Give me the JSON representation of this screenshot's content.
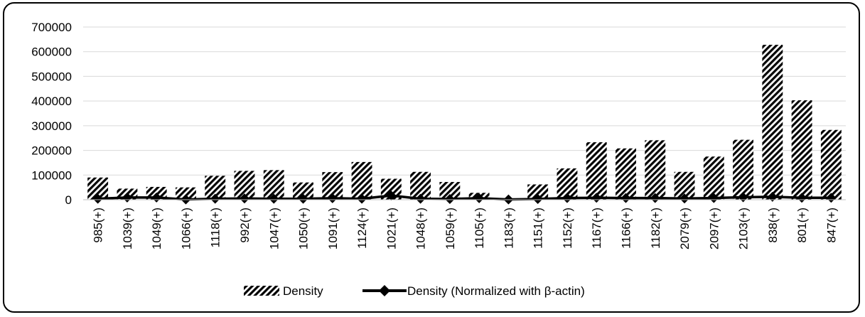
{
  "chart_data": {
    "type": "bar",
    "title": "",
    "xlabel": "",
    "ylabel": "",
    "ylim": [
      0,
      700000
    ],
    "y_ticks": [
      "0",
      "100000",
      "200000",
      "300000",
      "400000",
      "500000",
      "600000",
      "700000"
    ],
    "grid": true,
    "legend_position": "bottom",
    "categories": [
      "985(+)",
      "1039(+)",
      "1049(+)",
      "1066(+)",
      "1118(+)",
      "992(+)",
      "1047(+)",
      "1050(+)",
      "1091(+)",
      "1124(+)",
      "1021(+)",
      "1048(+)",
      "1059(+)",
      "1105(+)",
      "1183(+)",
      "1151(+)",
      "1152(+)",
      "1167(+)",
      "1166(+)",
      "1182(+)",
      "2079(+)",
      "2097(+)",
      "2103(+)",
      "838(+)",
      "801(+)",
      "847(+)"
    ],
    "series": [
      {
        "name": "Density",
        "kind": "bar",
        "pattern": "diagonal-hatch",
        "color": "#000000",
        "values": [
          90000,
          45000,
          52000,
          50000,
          97000,
          117000,
          120000,
          70000,
          112000,
          153000,
          85000,
          113000,
          72000,
          28000,
          0,
          62000,
          127000,
          233000,
          208000,
          241000,
          113000,
          175000,
          243000,
          628000,
          403000,
          283000
        ]
      },
      {
        "name": "Density (Normalized with β-actin)",
        "kind": "line",
        "marker": "diamond",
        "color": "#000000",
        "values": [
          4000,
          9000,
          9000,
          1000,
          4000,
          5000,
          4000,
          4000,
          6000,
          4000,
          17000,
          4000,
          3000,
          6000,
          1000,
          3000,
          7000,
          8000,
          7000,
          7000,
          5000,
          7000,
          10000,
          12000,
          8000,
          8000
        ]
      }
    ]
  }
}
